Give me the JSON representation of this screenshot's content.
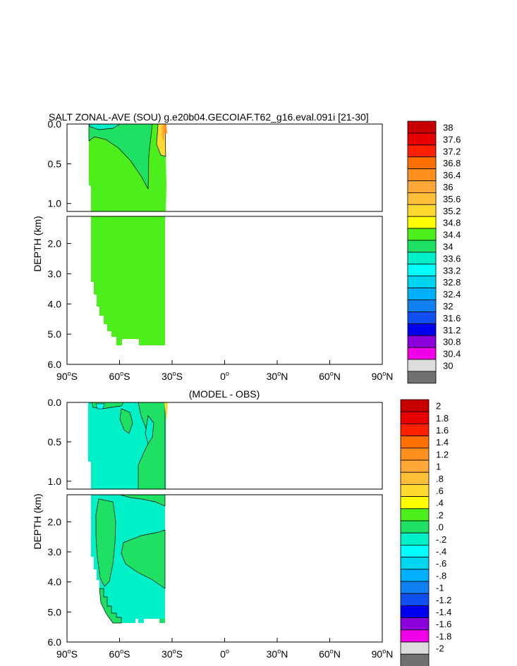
{
  "chart_data": [
    {
      "type": "contour",
      "title": "SALT ZONAL-AVE (SOU) g.e20b04.GECOIAF.T62_g16.eval.091i [21-30]",
      "ylabel": "DEPTH (km)",
      "x_ticks": [
        {
          "value": -90,
          "label": "90",
          "hemi": "S"
        },
        {
          "value": -60,
          "label": "60",
          "hemi": "S"
        },
        {
          "value": -30,
          "label": "30",
          "hemi": "S"
        },
        {
          "value": 0,
          "label": "0",
          "hemi": ""
        },
        {
          "value": 30,
          "label": "30",
          "hemi": "N"
        },
        {
          "value": 60,
          "label": "60",
          "hemi": "N"
        },
        {
          "value": 90,
          "label": "90",
          "hemi": "N"
        }
      ],
      "xlim": [
        -90,
        90
      ],
      "upper_depth_range_km": [
        0.0,
        1.1
      ],
      "lower_depth_range_km": [
        1.1,
        6.0
      ],
      "y_ticks_upper": [
        "0.0",
        "0.5",
        "1.0"
      ],
      "y_ticks_lower": [
        "2.0",
        "3.0",
        "4.0",
        "5.0",
        "6.0"
      ],
      "levels": [
        "38",
        "37.6",
        "37.2",
        "36.8",
        "36.4",
        "36",
        "35.6",
        "35.2",
        "34.8",
        "34.4",
        "34",
        "33.6",
        "33.2",
        "32.8",
        "32.4",
        "32",
        "31.6",
        "31.2",
        "30.8",
        "30.4",
        "30"
      ],
      "colors": [
        "#c80000",
        "#e60000",
        "#ff2000",
        "#ff7000",
        "#ff9020",
        "#ffa838",
        "#ffbe38",
        "#ffd830",
        "#ffff00",
        "#4cee1c",
        "#1ee062",
        "#00f0c8",
        "#00ffff",
        "#00d4ee",
        "#00b0ff",
        "#1080f0",
        "#1050f0",
        "#0000f0",
        "#8c00dc",
        "#f000e6",
        "#dcdcdc",
        "#707070"
      ]
    },
    {
      "type": "contour",
      "title": "(MODEL - OBS)",
      "ylabel": "DEPTH (km)",
      "x_ticks": [
        {
          "value": -90,
          "label": "90",
          "hemi": "S"
        },
        {
          "value": -60,
          "label": "60",
          "hemi": "S"
        },
        {
          "value": -30,
          "label": "30",
          "hemi": "S"
        },
        {
          "value": 0,
          "label": "0",
          "hemi": ""
        },
        {
          "value": 30,
          "label": "30",
          "hemi": "N"
        },
        {
          "value": 60,
          "label": "60",
          "hemi": "N"
        },
        {
          "value": 90,
          "label": "90",
          "hemi": "N"
        }
      ],
      "xlim": [
        -90,
        90
      ],
      "upper_depth_range_km": [
        0.0,
        1.1
      ],
      "lower_depth_range_km": [
        1.1,
        6.0
      ],
      "y_ticks_upper": [
        "0.0",
        "0.5",
        "1.0"
      ],
      "y_ticks_lower": [
        "2.0",
        "3.0",
        "4.0",
        "5.0",
        "6.0"
      ],
      "levels": [
        "2",
        "1.8",
        "1.6",
        "1.4",
        "1.2",
        "1",
        ".8",
        ".6",
        ".4",
        ".2",
        ".0",
        "-.2",
        "-.4",
        "-.6",
        "-.8",
        "-1",
        "-1.2",
        "-1.4",
        "-1.6",
        "-1.8",
        "-2"
      ],
      "colors": [
        "#c80000",
        "#e60000",
        "#ff2000",
        "#ff7000",
        "#ff9020",
        "#ffa838",
        "#ffbe38",
        "#ffd830",
        "#ffff00",
        "#4cee1c",
        "#1ee062",
        "#00f0c8",
        "#00ffff",
        "#00d4ee",
        "#00b0ff",
        "#1080f0",
        "#1050f0",
        "#0000f0",
        "#8c00dc",
        "#f000e6",
        "#dcdcdc",
        "#707070"
      ]
    }
  ]
}
